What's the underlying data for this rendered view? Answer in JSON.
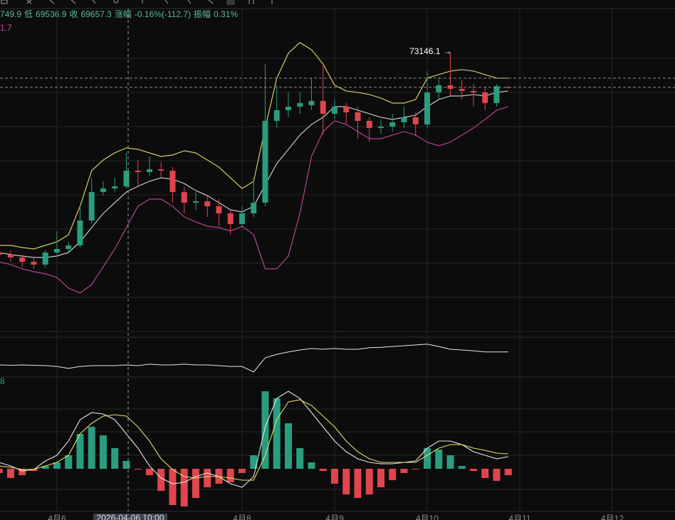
{
  "header": {
    "high_fragment": "749.9",
    "low_label": "低",
    "close_label": "收",
    "change_label": "涨幅",
    "change": "-0.16%(-112.7)",
    "amplitude_label": "振幅",
    "amplitude": "0.31%"
  },
  "panel_labels": [
    "1.7",
    "8"
  ],
  "crosshair_label": "2026-04-06 10:00",
  "chart_data": [
    {
      "type": "candlestick",
      "x": [
        5.375,
        5.5,
        5.625,
        5.75,
        5.875,
        6,
        6.125,
        6.25,
        6.375,
        6.5,
        6.625,
        6.75,
        6.875,
        7,
        7.125,
        7.25,
        7.375,
        7.5,
        7.625,
        7.75,
        7.875,
        8,
        8.125,
        8.25,
        8.375,
        8.5,
        8.625,
        8.75,
        8.875,
        9,
        9.125,
        9.25,
        9.375,
        9.5,
        9.625,
        9.75,
        9.875,
        10,
        10.125,
        10.25,
        10.375,
        10.5,
        10.625,
        10.75,
        10.875
      ],
      "ohlc": [
        [
          53410,
          53760,
          52920,
          53200
        ],
        [
          53200,
          53620,
          52500,
          52920
        ],
        [
          52920,
          53200,
          52010,
          52500
        ],
        [
          52500,
          52920,
          51800,
          52220
        ],
        [
          52220,
          53620,
          51940,
          53410
        ],
        [
          53410,
          55510,
          53200,
          53760
        ],
        [
          53760,
          54460,
          53340,
          54110
        ],
        [
          54110,
          57960,
          53900,
          56560
        ],
        [
          56560,
          60760,
          56280,
          59360
        ],
        [
          59360,
          60410,
          59010,
          59710
        ],
        [
          59710,
          60760,
          59360,
          59920
        ],
        [
          59920,
          63210,
          59710,
          61460
        ],
        [
          61460,
          62510,
          60060,
          61320
        ],
        [
          61320,
          62860,
          60900,
          61600
        ],
        [
          61600,
          62300,
          60760,
          61460
        ],
        [
          61460,
          61810,
          58310,
          59360
        ],
        [
          59360,
          59920,
          57260,
          58310
        ],
        [
          58310,
          59360,
          57610,
          58450
        ],
        [
          58450,
          59010,
          56910,
          57960
        ],
        [
          57960,
          58660,
          56000,
          57260
        ],
        [
          57260,
          57610,
          55160,
          56210
        ],
        [
          56210,
          57960,
          55860,
          57260
        ],
        [
          57260,
          60760,
          56910,
          58310
        ],
        [
          58310,
          71960,
          57960,
          66360
        ],
        [
          66360,
          69860,
          65660,
          67410
        ],
        [
          67410,
          69160,
          66710,
          67760
        ],
        [
          67760,
          69160,
          67060,
          68110
        ],
        [
          67900,
          70560,
          67410,
          68320
        ],
        [
          68320,
          71960,
          64960,
          67060
        ],
        [
          67060,
          68460,
          66500,
          67760
        ],
        [
          67760,
          68110,
          66010,
          67200
        ],
        [
          67200,
          67760,
          64610,
          66360
        ],
        [
          66360,
          66710,
          64260,
          65660
        ],
        [
          65660,
          66500,
          65100,
          65800
        ],
        [
          65800,
          67060,
          65310,
          66220
        ],
        [
          66220,
          67760,
          65660,
          66710
        ],
        [
          66710,
          67200,
          64820,
          66010
        ],
        [
          66010,
          71260,
          65660,
          69160
        ],
        [
          69160,
          70700,
          68460,
          69860
        ],
        [
          69860,
          73146.1,
          68810,
          69510
        ],
        [
          69510,
          70420,
          68460,
          69300
        ],
        [
          69300,
          70000,
          67760,
          69160
        ],
        [
          69160,
          69720,
          67410,
          68110
        ],
        [
          68110,
          70000,
          67760,
          69770
        ],
        [
          69700,
          69749.9,
          69536.9,
          69657.3
        ]
      ],
      "up_color": "#2a9d7f",
      "down_color": "#e0454d",
      "series": [
        {
          "color": "#e6dc6e",
          "values": [
            54110,
            54110,
            53900,
            53760,
            54110,
            54460,
            55160,
            57960,
            61460,
            62510,
            63210,
            63700,
            63560,
            63210,
            62860,
            63000,
            63420,
            63210,
            62510,
            61810,
            60760,
            59710,
            60410,
            65660,
            70560,
            73010,
            74060,
            73360,
            71960,
            69860,
            69300,
            69160,
            68950,
            68600,
            68110,
            68110,
            68460,
            70560,
            70910,
            71260,
            71400,
            71260,
            70910,
            70560,
            70560
          ]
        },
        {
          "color": "#d8d8d8",
          "values": [
            53410,
            53200,
            53060,
            52920,
            52920,
            53060,
            53410,
            54460,
            55860,
            57260,
            58310,
            59360,
            59920,
            60410,
            60760,
            60620,
            60200,
            59500,
            59010,
            58310,
            57610,
            57400,
            57960,
            60060,
            62160,
            63560,
            64960,
            66010,
            66710,
            67760,
            67760,
            67410,
            67060,
            66710,
            66500,
            66710,
            66920,
            67760,
            68460,
            68810,
            68810,
            68950,
            68810,
            69160,
            69300
          ]
        },
        {
          "color": "#c7479c",
          "values": [
            52500,
            52220,
            51800,
            51520,
            51310,
            50960,
            49910,
            49420,
            50260,
            52010,
            53760,
            55860,
            57960,
            58660,
            58660,
            57960,
            56910,
            56420,
            56000,
            55860,
            55510,
            56000,
            55160,
            51800,
            51800,
            53060,
            57260,
            62860,
            65310,
            66360,
            66010,
            65310,
            64610,
            64610,
            64960,
            65310,
            64960,
            64260,
            63910,
            64260,
            64960,
            65660,
            66500,
            67410,
            67760
          ]
        }
      ],
      "xlim": [
        5.385,
        12.677
      ],
      "ylim": [
        45360,
        75800
      ],
      "xticks": [
        {
          "value": 6,
          "label": "4月6"
        },
        {
          "value": 8,
          "label": "4月8"
        },
        {
          "value": 9,
          "label": "4月9"
        },
        {
          "value": 10,
          "label": "4月10"
        },
        {
          "value": 11,
          "label": "4月11"
        },
        {
          "value": 12,
          "label": "4月12"
        }
      ]
    },
    {
      "type": "line",
      "color": "#e6e6e6",
      "ylim": [
        0,
        100
      ],
      "values": [
        31,
        30,
        31,
        30,
        29,
        27,
        22,
        27,
        29,
        29,
        29,
        31,
        29,
        33,
        31,
        31,
        33,
        31,
        31,
        29,
        27,
        27,
        13,
        49,
        58,
        64,
        69,
        73,
        71,
        73,
        71,
        71,
        75,
        76,
        78,
        80,
        82,
        84,
        78,
        71,
        69,
        67,
        64,
        64,
        64
      ]
    },
    {
      "type": "macd",
      "ylim": [
        -600,
        1200
      ],
      "histogram": {
        "up_color": "#2a9d7f",
        "down_color": "#e0454d",
        "values": [
          -60,
          -130,
          -90,
          -30,
          40,
          90,
          190,
          490,
          590,
          470,
          290,
          110,
          -10,
          -90,
          -310,
          -510,
          -530,
          -410,
          -260,
          -210,
          -190,
          -60,
          190,
          1090,
          990,
          640,
          290,
          90,
          -30,
          -210,
          -360,
          -410,
          -360,
          -260,
          -160,
          -60,
          -10,
          290,
          270,
          190,
          40,
          -30,
          -130,
          -170,
          -90
        ]
      },
      "series": [
        {
          "color": "#e6e6e6",
          "values": [
            90,
            40,
            -30,
            -10,
            110,
            190,
            390,
            690,
            790,
            770,
            690,
            490,
            290,
            40,
            -130,
            -210,
            -190,
            -110,
            -60,
            -110,
            -210,
            -260,
            -110,
            590,
            990,
            1090,
            990,
            790,
            590,
            390,
            240,
            140,
            90,
            70,
            70,
            90,
            110,
            290,
            390,
            390,
            340,
            240,
            190,
            140,
            170
          ]
        },
        {
          "color": "#e6dc6e",
          "values": [
            40,
            20,
            -10,
            -10,
            40,
            90,
            190,
            490,
            640,
            740,
            760,
            740,
            590,
            390,
            140,
            -10,
            -110,
            -130,
            -110,
            -110,
            -130,
            -160,
            -160,
            190,
            690,
            940,
            970,
            890,
            740,
            590,
            390,
            240,
            140,
            90,
            90,
            90,
            90,
            190,
            290,
            340,
            340,
            290,
            260,
            220,
            210
          ]
        }
      ]
    }
  ]
}
